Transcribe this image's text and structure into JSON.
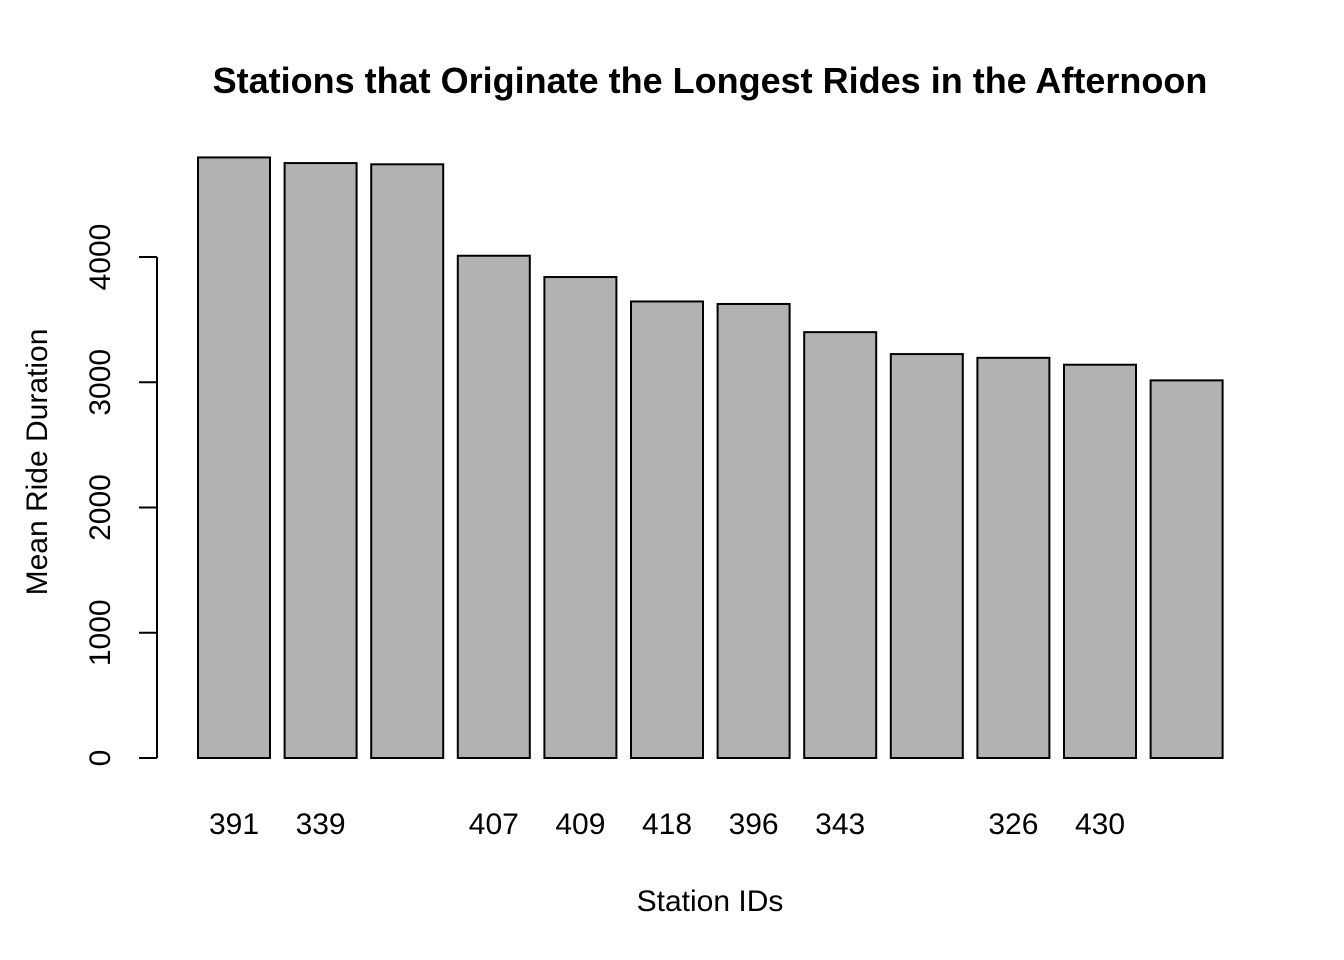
{
  "chart_data": {
    "type": "bar",
    "title": "Stations that Originate the Longest Rides in the Afternoon",
    "xlabel": "Station IDs",
    "ylabel": "Mean Ride Duration",
    "categories": [
      "391",
      "339",
      "",
      "407",
      "409",
      "418",
      "396",
      "343",
      "",
      "326",
      "430",
      ""
    ],
    "values": [
      4795,
      4750,
      4740,
      4010,
      3840,
      3645,
      3625,
      3400,
      3225,
      3195,
      3140,
      3015
    ],
    "ylim": [
      0,
      5000
    ],
    "yticks": [
      0,
      1000,
      2000,
      3000,
      4000
    ],
    "grid": false,
    "legend": "none",
    "bar_color": "#b2b2b2"
  }
}
